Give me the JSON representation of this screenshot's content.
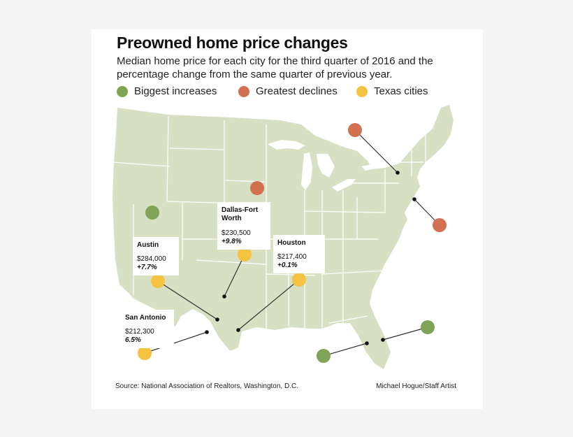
{
  "title": "Preowned home price changes",
  "subtitle": "Median home price for each city for the third quarter of 2016 and the percentage change from the same quarter of previous year.",
  "legend": [
    {
      "label": "Biggest increases",
      "color": "#7fa457"
    },
    {
      "label": "Greatest declines",
      "color": "#d1714f"
    },
    {
      "label": "Texas cities",
      "color": "#f5c242"
    }
  ],
  "colors": {
    "land": "#d8e0c4",
    "water": "#ffffff",
    "border": "#ffffff",
    "leader": "#333333"
  },
  "texas_cities": [
    {
      "name": "Dallas-Fort Worth",
      "price": "$230,500",
      "change": "+9.8%"
    },
    {
      "name": "Austin",
      "price": "$284,000",
      "change": "+7.7%"
    },
    {
      "name": "Houston",
      "price": "$217,400",
      "change": "+0.1%"
    },
    {
      "name": "San Antonio",
      "price": "$212,300",
      "change": "6.5%"
    }
  ],
  "source": "Source: National Association of Realtors, Washington, D.C.",
  "credit": "Michael Hogue/Staff Artist"
}
